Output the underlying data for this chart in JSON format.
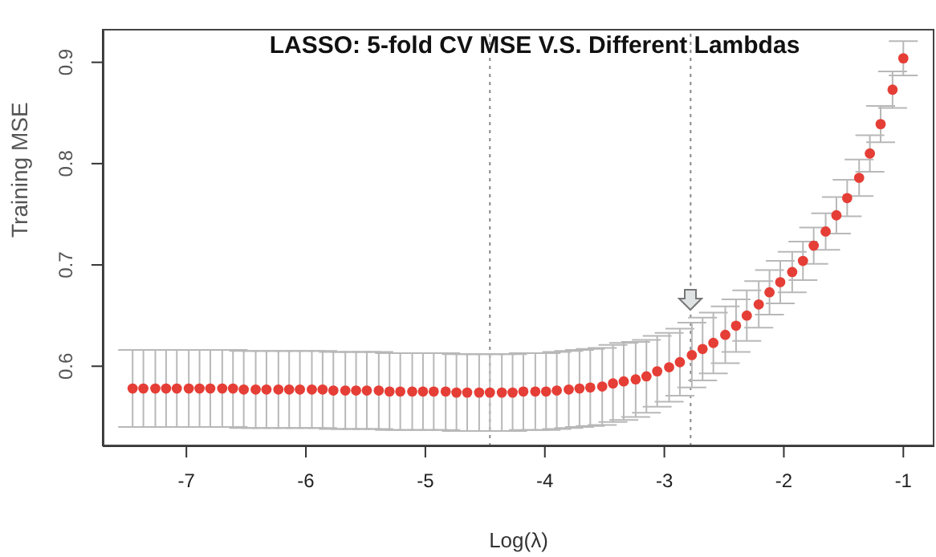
{
  "chart_data": {
    "type": "scatter",
    "title": "LASSO: 5-fold CV MSE V.S. Different Lambdas",
    "xlabel": "Log(λ)",
    "ylabel": "Training MSE",
    "x": [
      -7.45,
      -7.36,
      -7.26,
      -7.17,
      -7.08,
      -6.98,
      -6.89,
      -6.8,
      -6.7,
      -6.61,
      -6.52,
      -6.42,
      -6.33,
      -6.23,
      -6.14,
      -6.05,
      -5.95,
      -5.86,
      -5.77,
      -5.67,
      -5.58,
      -5.49,
      -5.39,
      -5.3,
      -5.21,
      -5.11,
      -5.02,
      -4.93,
      -4.83,
      -4.74,
      -4.65,
      -4.55,
      -4.46,
      -4.36,
      -4.27,
      -4.18,
      -4.08,
      -3.99,
      -3.9,
      -3.8,
      -3.71,
      -3.62,
      -3.52,
      -3.43,
      -3.34,
      -3.24,
      -3.15,
      -3.06,
      -2.96,
      -2.87,
      -2.77,
      -2.68,
      -2.59,
      -2.49,
      -2.4,
      -2.31,
      -2.21,
      -2.12,
      -2.03,
      -1.93,
      -1.84,
      -1.75,
      -1.65,
      -1.56,
      -1.47,
      -1.37,
      -1.28,
      -1.19,
      -1.09,
      -1.0
    ],
    "series": [
      {
        "color": "#e53e36",
        "values": [
          0.578,
          0.578,
          0.578,
          0.578,
          0.578,
          0.578,
          0.578,
          0.578,
          0.578,
          0.578,
          0.577,
          0.577,
          0.577,
          0.577,
          0.577,
          0.577,
          0.577,
          0.577,
          0.576,
          0.576,
          0.576,
          0.576,
          0.576,
          0.575,
          0.575,
          0.575,
          0.575,
          0.575,
          0.575,
          0.574,
          0.574,
          0.574,
          0.574,
          0.574,
          0.574,
          0.575,
          0.575,
          0.575,
          0.576,
          0.577,
          0.578,
          0.579,
          0.58,
          0.583,
          0.585,
          0.587,
          0.59,
          0.595,
          0.599,
          0.604,
          0.611,
          0.617,
          0.623,
          0.631,
          0.64,
          0.65,
          0.661,
          0.673,
          0.683,
          0.693,
          0.704,
          0.719,
          0.733,
          0.749,
          0.766,
          0.786,
          0.81,
          0.839,
          0.873,
          0.904
        ],
        "errors": [
          0.038,
          0.038,
          0.038,
          0.038,
          0.038,
          0.038,
          0.038,
          0.038,
          0.038,
          0.038,
          0.038,
          0.038,
          0.038,
          0.038,
          0.038,
          0.038,
          0.038,
          0.038,
          0.038,
          0.038,
          0.038,
          0.038,
          0.038,
          0.038,
          0.038,
          0.038,
          0.038,
          0.038,
          0.038,
          0.038,
          0.038,
          0.038,
          0.038,
          0.038,
          0.038,
          0.038,
          0.038,
          0.038,
          0.038,
          0.038,
          0.038,
          0.038,
          0.038,
          0.038,
          0.038,
          0.037,
          0.036,
          0.035,
          0.034,
          0.033,
          0.032,
          0.031,
          0.03,
          0.028,
          0.026,
          0.025,
          0.023,
          0.022,
          0.021,
          0.02,
          0.019,
          0.018,
          0.018,
          0.018,
          0.018,
          0.018,
          0.018,
          0.018,
          0.018,
          0.017
        ]
      }
    ],
    "xlim": [
      -7.7,
      -0.74
    ],
    "xticks": [
      -7,
      -6,
      -5,
      -4,
      -3,
      -2,
      -1
    ],
    "ylim": [
      0.521,
      0.933
    ],
    "yticks": [
      0.6,
      0.7,
      0.8,
      0.9
    ],
    "ref_lines": [
      {
        "axis": "x",
        "value": -4.46,
        "color": "#888888",
        "line_style": "dotted"
      },
      {
        "axis": "x",
        "value": -2.78,
        "color": "#888888",
        "line_style": "dotted"
      }
    ],
    "grid": false,
    "legend": false,
    "marker": "circle"
  }
}
